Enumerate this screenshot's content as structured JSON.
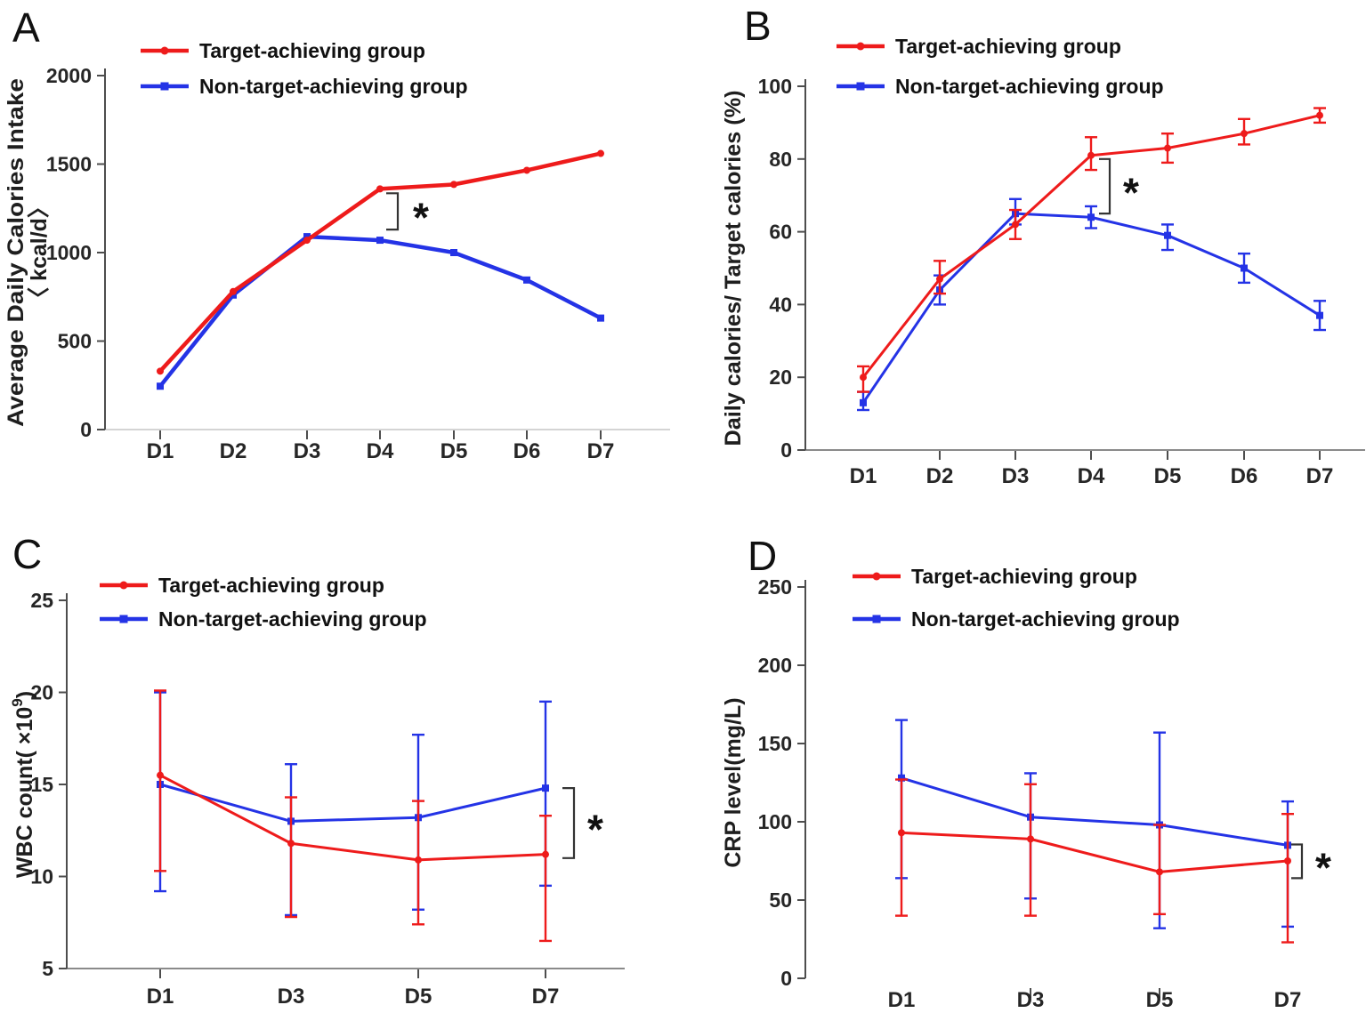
{
  "colors": {
    "red": "#ee1b1b",
    "blue": "#2433e6",
    "axis": "#4d4d4d",
    "light_axis": "#c6c6c6",
    "text": "#1e1e1e"
  },
  "chart_data": [
    {
      "type": "line",
      "label": "A",
      "legend_position": "top-left",
      "x_categories": [
        "D1",
        "D2",
        "D3",
        "D4",
        "D5",
        "D6",
        "D7"
      ],
      "y_axis": {
        "label_lines": [
          "Average Daily Calories  Intake",
          "〈 kcal/d〉"
        ],
        "ticks": [
          0,
          500,
          1000,
          1500,
          2000
        ],
        "range": [
          0,
          2000
        ]
      },
      "series": [
        {
          "name": "Target-achieving group",
          "color": "#ee1b1b",
          "marker": "circle",
          "values": [
            330,
            780,
            1070,
            1360,
            1385,
            1465,
            1560
          ]
        },
        {
          "name": "Non-target-achieving group",
          "color": "#2433e6",
          "marker": "square",
          "values": [
            245,
            760,
            1090,
            1070,
            1000,
            845,
            630
          ]
        }
      ],
      "significance": {
        "symbol": "*",
        "at": "D4",
        "compares": "Target-achieving vs Non-target-achieving"
      }
    },
    {
      "type": "line",
      "label": "B",
      "legend_position": "top-left",
      "x_categories": [
        "D1",
        "D2",
        "D3",
        "D4",
        "D5",
        "D6",
        "D7"
      ],
      "y_axis": {
        "label_lines": [
          "Daily calories/ Target calories (%)"
        ],
        "ticks": [
          0,
          20,
          40,
          60,
          80,
          100
        ],
        "range": [
          0,
          100
        ]
      },
      "series": [
        {
          "name": "Target-achieving group",
          "color": "#ee1b1b",
          "marker": "circle",
          "values": [
            20,
            47,
            62,
            81,
            83,
            87,
            92
          ],
          "err_lo": [
            16,
            43,
            58,
            77,
            79,
            84,
            90
          ],
          "err_hi": [
            23,
            52,
            66,
            86,
            87,
            91,
            94
          ]
        },
        {
          "name": "Non-target-achieving group",
          "color": "#2433e6",
          "marker": "square",
          "values": [
            13,
            44,
            65,
            64,
            59,
            50,
            37
          ],
          "err_lo": [
            11,
            40,
            62,
            61,
            55,
            46,
            33
          ],
          "err_hi": [
            16,
            48,
            69,
            67,
            62,
            54,
            41
          ]
        }
      ],
      "significance": {
        "symbol": "*",
        "at": "D4",
        "compares": "Target-achieving vs Non-target-achieving"
      }
    },
    {
      "type": "line",
      "label": "C",
      "legend_position": "top-left",
      "x_categories": [
        "D1",
        "D3",
        "D5",
        "D7"
      ],
      "y_axis": {
        "label_rich": [
          {
            "t": "WBC count( ×10"
          },
          {
            "t": "9",
            "dy": -11,
            "size": 17
          },
          {
            "t": ")",
            "dy": 11,
            "size": 25
          }
        ],
        "ticks": [
          5,
          10,
          15,
          20,
          25
        ],
        "range": [
          5,
          25
        ]
      },
      "series": [
        {
          "name": "Target-achieving group",
          "color": "#ee1b1b",
          "marker": "circle",
          "values": [
            15.5,
            11.8,
            10.9,
            11.2
          ],
          "err_lo": [
            10.3,
            7.8,
            7.4,
            6.5
          ],
          "err_hi": [
            20.1,
            14.3,
            14.1,
            13.3
          ]
        },
        {
          "name": "Non-target-achieving group",
          "color": "#2433e6",
          "marker": "square",
          "values": [
            15.0,
            13.0,
            13.2,
            14.8
          ],
          "err_lo": [
            9.2,
            7.9,
            8.2,
            9.5
          ],
          "err_hi": [
            20.0,
            16.1,
            17.7,
            19.5
          ]
        }
      ],
      "significance": {
        "symbol": "*",
        "at": "D7",
        "compares": "Target-achieving vs Non-target-achieving"
      }
    },
    {
      "type": "line",
      "label": "D",
      "legend_position": "top-left",
      "x_categories": [
        "D1",
        "D3",
        "D5",
        "D7"
      ],
      "y_axis": {
        "label_lines": [
          "CRP level(mg/L)"
        ],
        "ticks": [
          0,
          50,
          100,
          150,
          200,
          250
        ],
        "range": [
          0,
          250
        ]
      },
      "series": [
        {
          "name": "Target-achieving group",
          "color": "#ee1b1b",
          "marker": "circle",
          "values": [
            93,
            89,
            68,
            75
          ],
          "err_lo": [
            40,
            40,
            41,
            23
          ],
          "err_hi": [
            127,
            124,
            98,
            105
          ]
        },
        {
          "name": "Non-target-achieving group",
          "color": "#2433e6",
          "marker": "square",
          "values": [
            128,
            103,
            98,
            85
          ],
          "err_lo": [
            64,
            51,
            32,
            33
          ],
          "err_hi": [
            165,
            131,
            157,
            113
          ]
        }
      ],
      "significance": {
        "symbol": "*",
        "at": "D7",
        "compares": "Target-achieving vs Non-target-achieving"
      }
    }
  ]
}
